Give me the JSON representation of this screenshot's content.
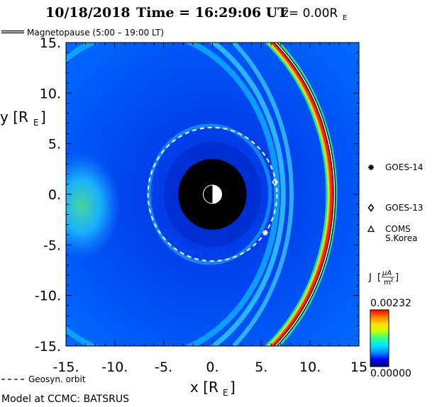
{
  "chart_data": {
    "type": "heatmap",
    "title": {
      "date": "10/18/2018",
      "time_label": "Time = 16:29:06 UT",
      "z_label": "z= 0.00R",
      "z_sub": "E"
    },
    "legend_line": "Magnetopause (5:00 – 19:00 LT)",
    "legend_geosyn": "Geosyn. orbit",
    "xlabel": {
      "main": "x [R",
      "sub": "E",
      "end": "]"
    },
    "ylabel": {
      "main": "y [R",
      "sub": "E",
      "end": "]"
    },
    "xlim": [
      -15,
      15
    ],
    "ylim": [
      -15,
      15
    ],
    "x_ticks": [
      "-15.",
      "-10.",
      "-5.",
      "0.",
      "5.",
      "10.",
      "15"
    ],
    "x_tick_values": [
      -15,
      -10,
      -5,
      0,
      5,
      10,
      15
    ],
    "y_ticks": [
      "15.",
      "10.",
      "5.",
      "0.",
      "-5.",
      "-10.",
      "-15."
    ],
    "y_tick_values": [
      15,
      10,
      5,
      0,
      -5,
      -10,
      -15
    ],
    "colorbar": {
      "label": "J",
      "unit_num": "μA",
      "unit_den": "m",
      "unit_exp": "2",
      "max_label": "0.00232",
      "min_label": "0.00000",
      "max": 0.00232,
      "min": 0.0,
      "colors": [
        "#00006e",
        "#0000ff",
        "#0090ff",
        "#00e8ff",
        "#30ff90",
        "#c8ff00",
        "#ffe000",
        "#ff8000",
        "#ff0000"
      ]
    },
    "earth_radius": 3.5,
    "geosyn_radius": 6.6,
    "magnetopause_subsolar": 12.2,
    "satellites": [
      {
        "name": "GOES-14",
        "marker": "asterisk",
        "x": 5.4,
        "y": -3.8
      },
      {
        "name": "GOES-13",
        "marker": "diamond",
        "x": 6.4,
        "y": 1.2
      },
      {
        "name": "COMS\nS.Korea",
        "marker": "triangle",
        "x": null,
        "y": null
      }
    ],
    "sat_legend": [
      {
        "marker": "asterisk",
        "label": "GOES-14"
      },
      {
        "marker": "diamond",
        "label": "GOES-13"
      },
      {
        "marker": "triangle",
        "label": "COMS",
        "label2": "S.Korea"
      }
    ]
  },
  "footer": "Model at CCMC: BATSRUS"
}
